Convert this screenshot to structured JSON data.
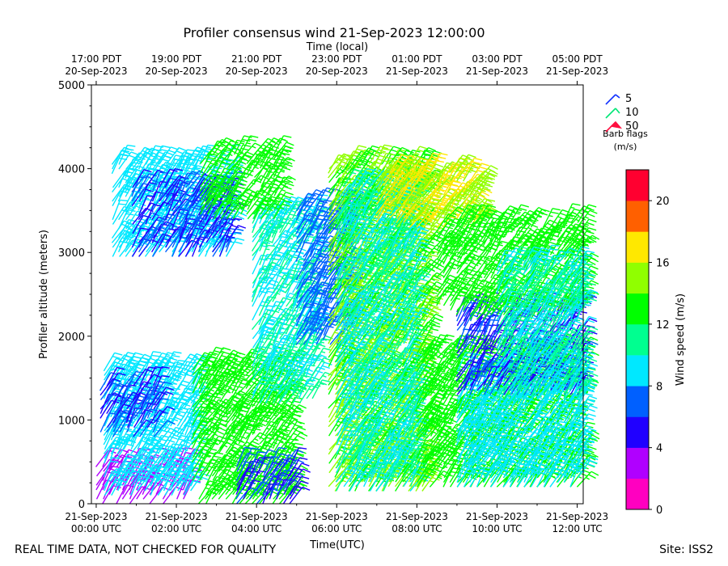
{
  "chart_data": {
    "type": "wind-barb-profile",
    "title": "Profiler consensus wind 21-Sep-2023 12:00:00",
    "top_axis_title": "Time (local)",
    "xlabel": "Time(UTC)",
    "ylabel": "Profiler altitude (meters)",
    "ylim": [
      0,
      5000
    ],
    "yticks": [
      0,
      1000,
      2000,
      3000,
      4000,
      5000
    ],
    "xlim_hours_utc": [
      -0.12,
      12.15
    ],
    "bottom_ticks": [
      {
        "hour": 0,
        "line1": "21-Sep-2023",
        "line2": "00:00 UTC"
      },
      {
        "hour": 2,
        "line1": "21-Sep-2023",
        "line2": "02:00 UTC"
      },
      {
        "hour": 4,
        "line1": "21-Sep-2023",
        "line2": "04:00 UTC"
      },
      {
        "hour": 6,
        "line1": "21-Sep-2023",
        "line2": "06:00 UTC"
      },
      {
        "hour": 8,
        "line1": "21-Sep-2023",
        "line2": "08:00 UTC"
      },
      {
        "hour": 10,
        "line1": "21-Sep-2023",
        "line2": "10:00 UTC"
      },
      {
        "hour": 12,
        "line1": "21-Sep-2023",
        "line2": "12:00 UTC"
      }
    ],
    "top_ticks": [
      {
        "hour": 0,
        "line1": "17:00 PDT",
        "line2": "20-Sep-2023"
      },
      {
        "hour": 2,
        "line1": "19:00 PDT",
        "line2": "20-Sep-2023"
      },
      {
        "hour": 4,
        "line1": "21:00 PDT",
        "line2": "20-Sep-2023"
      },
      {
        "hour": 6,
        "line1": "23:00 PDT",
        "line2": "20-Sep-2023"
      },
      {
        "hour": 8,
        "line1": "01:00 PDT",
        "line2": "21-Sep-2023"
      },
      {
        "hour": 10,
        "line1": "03:00 PDT",
        "line2": "21-Sep-2023"
      },
      {
        "hour": 12,
        "line1": "05:00 PDT",
        "line2": "21-Sep-2023"
      }
    ],
    "legend": {
      "title": "Barb flags",
      "units": "(m/s)",
      "entries": [
        {
          "label": "5",
          "color": "#1030ff"
        },
        {
          "label": "10",
          "color": "#00e676"
        },
        {
          "label": "50",
          "color": "#ff1040"
        }
      ]
    },
    "colorbar": {
      "label": "Wind speed (m/s)",
      "min": 0,
      "max": 22,
      "ticks": [
        0,
        4,
        8,
        12,
        16,
        20
      ],
      "colors": [
        "#ff00c0",
        "#b000ff",
        "#2000ff",
        "#0060ff",
        "#00e8ff",
        "#00ff90",
        "#00ff00",
        "#90ff00",
        "#ffe800",
        "#ff6000",
        "#ff0030"
      ]
    },
    "barb_regions": [
      {
        "name": "surface-magenta",
        "t": [
          0,
          2.2
        ],
        "alt": [
          0,
          450
        ],
        "speed": 3
      },
      {
        "name": "low-cyan",
        "t": [
          0.2,
          2.5
        ],
        "alt": [
          100,
          1600
        ],
        "speed": 9
      },
      {
        "name": "low-blue",
        "t": [
          0.1,
          1.6
        ],
        "alt": [
          800,
          1450
        ],
        "speed": 6
      },
      {
        "name": "low-green-mid",
        "t": [
          2.4,
          4.8
        ],
        "alt": [
          0,
          1700
        ],
        "speed": 13
      },
      {
        "name": "low-blue-stack",
        "t": [
          3.5,
          5.0
        ],
        "alt": [
          0,
          450
        ],
        "speed": 6
      },
      {
        "name": "mid-cyan",
        "t": [
          3.9,
          5.5
        ],
        "alt": [
          1200,
          3500
        ],
        "speed": 10
      },
      {
        "name": "upper-cyan",
        "t": [
          0.4,
          3.3
        ],
        "alt": [
          2950,
          4100
        ],
        "speed": 9
      },
      {
        "name": "upper-blue",
        "t": [
          0.9,
          3.3
        ],
        "alt": [
          2950,
          3800
        ],
        "speed": 6
      },
      {
        "name": "upper-green",
        "t": [
          2.6,
          4.6
        ],
        "alt": [
          3400,
          4200
        ],
        "speed": 13
      },
      {
        "name": "mid-blue",
        "t": [
          5.0,
          6.5
        ],
        "alt": [
          1900,
          3600
        ],
        "speed": 7
      },
      {
        "name": "green-core",
        "t": [
          5.8,
          8.2
        ],
        "alt": [
          150,
          4100
        ],
        "speed": 14
      },
      {
        "name": "cyan-core",
        "t": [
          6.0,
          8.0
        ],
        "alt": [
          150,
          3800
        ],
        "speed": 10
      },
      {
        "name": "yellow-top",
        "t": [
          7.0,
          9.6
        ],
        "alt": [
          3300,
          4000
        ],
        "speed": 16
      },
      {
        "name": "late-green-low",
        "t": [
          8.0,
          12.1
        ],
        "alt": [
          200,
          1800
        ],
        "speed": 13
      },
      {
        "name": "late-cyan-low",
        "t": [
          9.0,
          12.1
        ],
        "alt": [
          200,
          1600
        ],
        "speed": 9
      },
      {
        "name": "late-blue-mid",
        "t": [
          9.0,
          12.1
        ],
        "alt": [
          1300,
          2300
        ],
        "speed": 6
      },
      {
        "name": "late-upper-green",
        "t": [
          8.5,
          12.1
        ],
        "alt": [
          2200,
          3400
        ],
        "speed": 13
      },
      {
        "name": "late-cyan-mid",
        "t": [
          10.0,
          12.1
        ],
        "alt": [
          1200,
          2900
        ],
        "speed": 10
      }
    ]
  },
  "footer": {
    "left": "REAL TIME DATA, NOT CHECKED FOR QUALITY",
    "right": "Site: ISS2"
  }
}
